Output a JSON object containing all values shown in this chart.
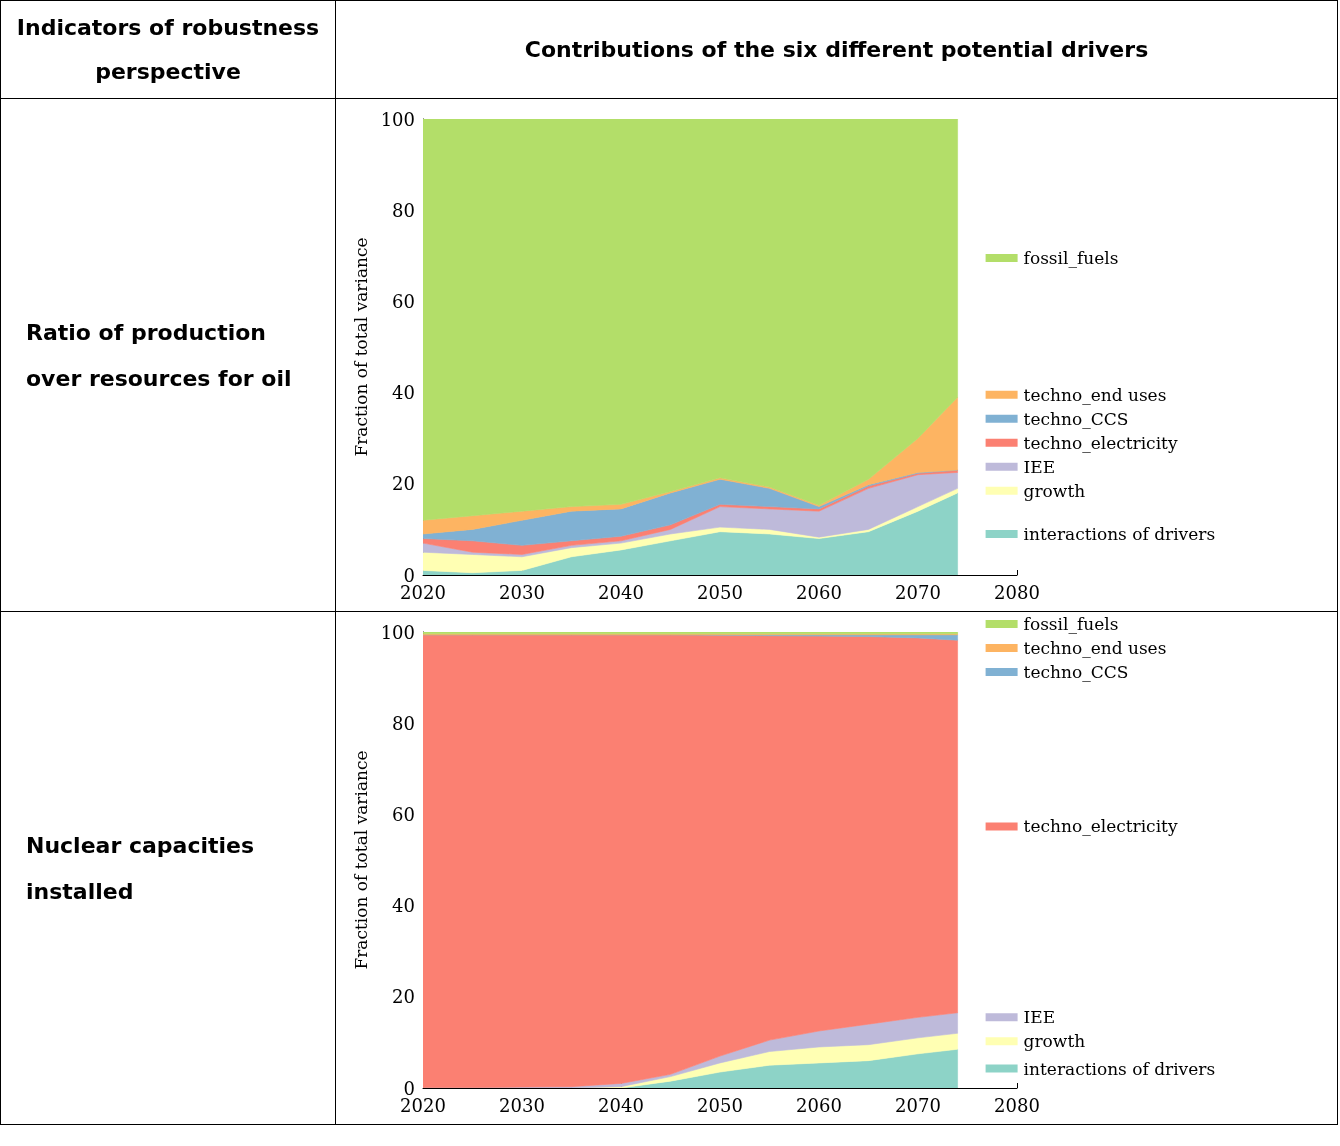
{
  "chart_data": [
    {
      "type": "area",
      "title": "Ratio of production over resources for oil",
      "annotations": [
        "Indicators of robustness perspective",
        "Contributions of the six different potential drivers"
      ],
      "ylabel": "Fraction of total variance",
      "stacked": true,
      "grid": false,
      "legend": "right",
      "x": [
        2020,
        2025,
        2030,
        2035,
        2040,
        2045,
        2050,
        2055,
        2060,
        2065,
        2070,
        2074
      ],
      "xlim": [
        2020,
        2080
      ],
      "xticks": [
        2020,
        2030,
        2040,
        2050,
        2060,
        2070,
        2080
      ],
      "ylim": [
        0,
        100
      ],
      "yticks": [
        0,
        20,
        40,
        60,
        80,
        100
      ],
      "series": [
        {
          "name": "interactions of drivers",
          "color": "#8dd3c7",
          "values": [
            1,
            0.5,
            1,
            4,
            5.5,
            7.5,
            9.5,
            9,
            8,
            9.5,
            14,
            18
          ]
        },
        {
          "name": "growth",
          "color": "#ffffb3",
          "values": [
            4,
            4,
            3,
            2,
            1.5,
            1.5,
            1,
            1,
            0.3,
            0.5,
            1,
            1
          ]
        },
        {
          "name": "IEE",
          "color": "#bebada",
          "values": [
            2,
            0.5,
            0.5,
            0.5,
            0.5,
            1,
            4.5,
            4.5,
            5.7,
            9,
            7,
            3.5
          ]
        },
        {
          "name": "techno_electricity",
          "color": "#fb8072",
          "values": [
            1,
            2.5,
            2,
            1,
            1,
            1,
            0.5,
            0.5,
            0.5,
            0.5,
            0.3,
            0.5
          ]
        },
        {
          "name": "techno_CCS",
          "color": "#80b1d3",
          "values": [
            1,
            2.5,
            5.5,
            6.5,
            6,
            7,
            5.5,
            4,
            0.5,
            0.3,
            0.2,
            0
          ]
        },
        {
          "name": "techno_end uses",
          "color": "#fdb462",
          "values": [
            3,
            3,
            2,
            1,
            1,
            0.3,
            0.3,
            0.3,
            0.3,
            1.2,
            7.5,
            16
          ]
        },
        {
          "name": "fossil_fuels",
          "color": "#b3de69",
          "values": [
            88,
            87,
            86,
            85,
            84.5,
            81.7,
            78.7,
            80.7,
            84.7,
            79,
            70,
            61
          ]
        }
      ]
    },
    {
      "type": "area",
      "title": "Nuclear capacities installed",
      "ylabel": "Fraction of total variance",
      "stacked": true,
      "grid": false,
      "legend": "right",
      "x": [
        2020,
        2025,
        2030,
        2035,
        2040,
        2045,
        2050,
        2055,
        2060,
        2065,
        2070,
        2074
      ],
      "xlim": [
        2020,
        2080
      ],
      "xticks": [
        2020,
        2030,
        2040,
        2050,
        2060,
        2070,
        2080
      ],
      "ylim": [
        0,
        100
      ],
      "yticks": [
        0,
        20,
        40,
        60,
        80,
        100
      ],
      "series": [
        {
          "name": "interactions of drivers",
          "color": "#8dd3c7",
          "values": [
            0,
            0,
            0,
            0,
            0,
            1.5,
            3.5,
            5,
            5.5,
            6,
            7.5,
            8.5
          ]
        },
        {
          "name": "growth",
          "color": "#ffffb3",
          "values": [
            0,
            0,
            0,
            0,
            0.3,
            1,
            2,
            3,
            3.5,
            3.5,
            3.5,
            3.5
          ]
        },
        {
          "name": "IEE",
          "color": "#bebada",
          "values": [
            0.1,
            0.1,
            0.2,
            0.3,
            0.7,
            0.5,
            1.5,
            2.5,
            3.5,
            4.5,
            4.5,
            4.5
          ]
        },
        {
          "name": "techno_electricity",
          "color": "#fb8072",
          "values": [
            99.3,
            99.3,
            99.2,
            99.1,
            98.4,
            96.4,
            92.3,
            88.7,
            86.6,
            85,
            83.2,
            81.7
          ]
        },
        {
          "name": "techno_CCS",
          "color": "#80b1d3",
          "values": [
            0,
            0,
            0,
            0,
            0,
            0,
            0.1,
            0.2,
            0.3,
            0.4,
            0.7,
            1.2
          ]
        },
        {
          "name": "techno_end uses",
          "color": "#fdb462",
          "values": [
            0.2,
            0.2,
            0.2,
            0.2,
            0.2,
            0.2,
            0.2,
            0.2,
            0.2,
            0.2,
            0.2,
            0.2
          ]
        },
        {
          "name": "fossil_fuels",
          "color": "#b3de69",
          "values": [
            0.4,
            0.4,
            0.4,
            0.4,
            0.4,
            0.4,
            0.4,
            0.4,
            0.4,
            0.4,
            0.4,
            0.4
          ]
        }
      ]
    }
  ]
}
